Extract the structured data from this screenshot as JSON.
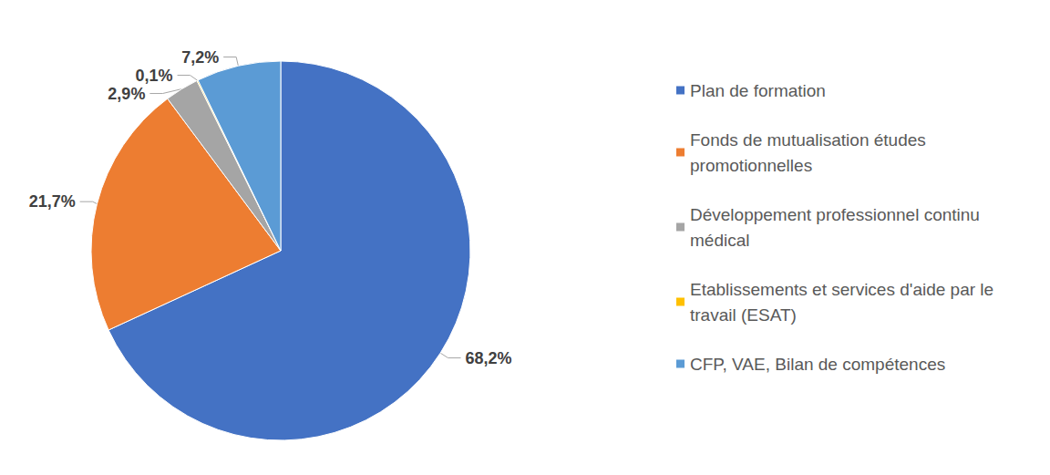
{
  "chart_data": {
    "type": "pie",
    "categories": [
      "Plan de formation",
      "Fonds de mutualisation études promotionnelles",
      "Développement professionnel continu médical",
      "Etablissements et services d'aide par le travail (ESAT)",
      "CFP, VAE, Bilan de compétences"
    ],
    "values": [
      68.2,
      21.7,
      2.9,
      0.1,
      7.2
    ],
    "value_labels": [
      "68,2%",
      "21,7%",
      "2,9%",
      "0,1%",
      "7,2%"
    ],
    "colors": [
      "#4472c4",
      "#ed7d31",
      "#a5a5a5",
      "#ffc000",
      "#5b9bd5"
    ],
    "legend": "right",
    "data_labels": true
  }
}
